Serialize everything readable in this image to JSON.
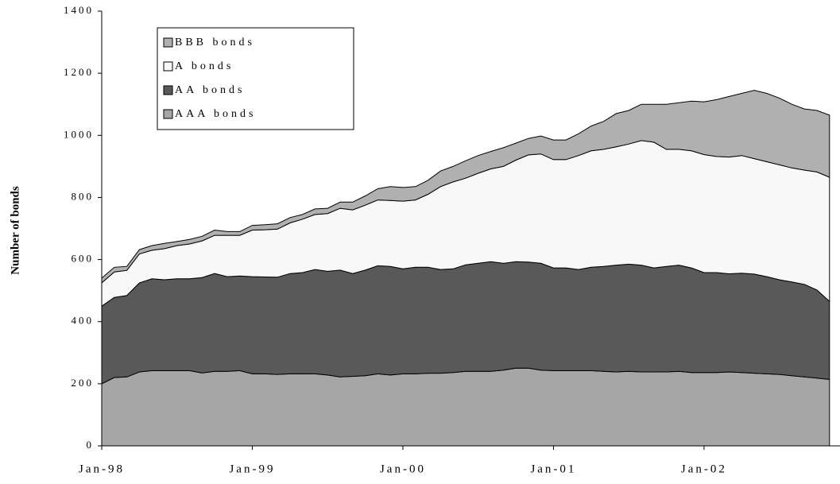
{
  "chart_data": {
    "type": "area",
    "stacked": true,
    "y_label": "Number of bonds",
    "categories": [
      "Jan-98",
      null,
      null,
      null,
      null,
      null,
      null,
      null,
      null,
      null,
      null,
      null,
      "Jan-99",
      null,
      null,
      null,
      null,
      null,
      null,
      null,
      null,
      null,
      null,
      null,
      "Jan-00",
      null,
      null,
      null,
      null,
      null,
      null,
      null,
      null,
      null,
      null,
      null,
      "Jan-01",
      null,
      null,
      null,
      null,
      null,
      null,
      null,
      null,
      null,
      null,
      null,
      "Jan-02",
      null,
      null,
      null,
      null,
      null,
      null,
      null,
      null,
      null,
      null
    ],
    "series": [
      {
        "name": "AAA bonds",
        "color": "#a6a6a6",
        "values": [
          200,
          220,
          222,
          238,
          242,
          242,
          242,
          242,
          235,
          240,
          240,
          242,
          232,
          232,
          230,
          232,
          232,
          232,
          228,
          222,
          224,
          226,
          232,
          228,
          232,
          232,
          234,
          234,
          236,
          240,
          240,
          240,
          244,
          250,
          250,
          244,
          242,
          242,
          242,
          242,
          240,
          238,
          240,
          238,
          238,
          238,
          240,
          236,
          236,
          236,
          238,
          236,
          234,
          232,
          230,
          226,
          222,
          218,
          214
        ]
      },
      {
        "name": "AA bonds",
        "color": "#595959",
        "values": [
          250,
          258,
          262,
          287,
          296,
          293,
          296,
          296,
          307,
          315,
          305,
          305,
          313,
          312,
          313,
          323,
          326,
          336,
          334,
          344,
          331,
          340,
          348,
          350,
          338,
          343,
          341,
          334,
          334,
          343,
          348,
          353,
          344,
          343,
          342,
          344,
          331,
          331,
          326,
          333,
          338,
          344,
          345,
          344,
          335,
          340,
          342,
          337,
          322,
          322,
          316,
          320,
          319,
          313,
          305,
          302,
          298,
          284,
          251
        ]
      },
      {
        "name": "A bonds",
        "color": "#f8f8f8",
        "values": [
          75,
          82,
          81,
          93,
          92,
          100,
          107,
          112,
          118,
          123,
          133,
          131,
          150,
          152,
          155,
          163,
          172,
          177,
          186,
          199,
          205,
          209,
          212,
          212,
          218,
          217,
          235,
          267,
          280,
          279,
          290,
          299,
          312,
          327,
          345,
          352,
          349,
          349,
          367,
          375,
          377,
          381,
          387,
          401,
          405,
          377,
          373,
          377,
          380,
          374,
          376,
          379,
          372,
          370,
          370,
          367,
          368,
          380,
          400
        ]
      },
      {
        "name": "BBB bonds",
        "color": "#b0b0b0",
        "values": [
          15,
          15,
          13,
          14,
          15,
          17,
          13,
          15,
          15,
          17,
          12,
          12,
          15,
          16,
          17,
          17,
          15,
          18,
          17,
          20,
          25,
          30,
          36,
          45,
          44,
          43,
          45,
          50,
          50,
          56,
          57,
          56,
          60,
          55,
          53,
          58,
          63,
          63,
          70,
          80,
          90,
          107,
          108,
          117,
          122,
          145,
          150,
          160,
          170,
          183,
          195,
          200,
          220,
          220,
          215,
          205,
          197,
          198,
          200
        ]
      }
    ],
    "ylim": [
      0,
      1400
    ],
    "yticks": [
      0,
      200,
      400,
      600,
      800,
      1000,
      1200,
      1400
    ],
    "legend": "upper left"
  }
}
